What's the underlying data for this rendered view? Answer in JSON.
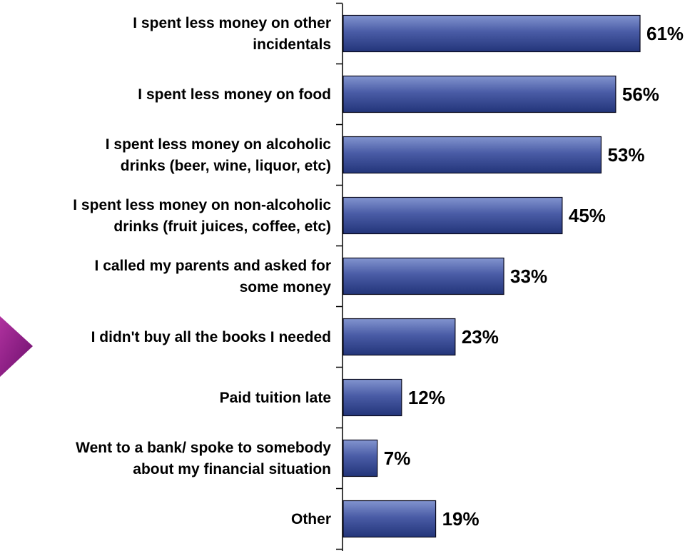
{
  "chart_data": {
    "type": "bar",
    "orientation": "horizontal",
    "categories": [
      [
        "I spent less money on other",
        "incidentals"
      ],
      [
        "I spent less money on food"
      ],
      [
        "I spent less money on alcoholic",
        "drinks (beer, wine, liquor, etc)"
      ],
      [
        "I spent less money on non-alcoholic",
        "drinks (fruit juices, coffee, etc)"
      ],
      [
        "I called my parents and asked for",
        "some money"
      ],
      [
        "I didn't buy all the books I needed"
      ],
      [
        "Paid tuition late"
      ],
      [
        "Went to a bank/ spoke to somebody",
        "about my financial situation"
      ],
      [
        "Other"
      ]
    ],
    "values": [
      61,
      56,
      53,
      45,
      33,
      23,
      12,
      7,
      19
    ],
    "data_labels": [
      "61%",
      "56%",
      "53%",
      "45%",
      "33%",
      "23%",
      "12%",
      "7%",
      "19%"
    ],
    "xlim": [
      0,
      61
    ],
    "grid": false,
    "legend": "none"
  },
  "colors": {
    "bar_top": "#8294cf",
    "bar_mid": "#4a5ca6",
    "bar_bottom": "#23357a",
    "bar_stroke": "#0a0a1e",
    "axis": "#000000",
    "text": "#000000",
    "decoration": "#8c1a8c"
  }
}
